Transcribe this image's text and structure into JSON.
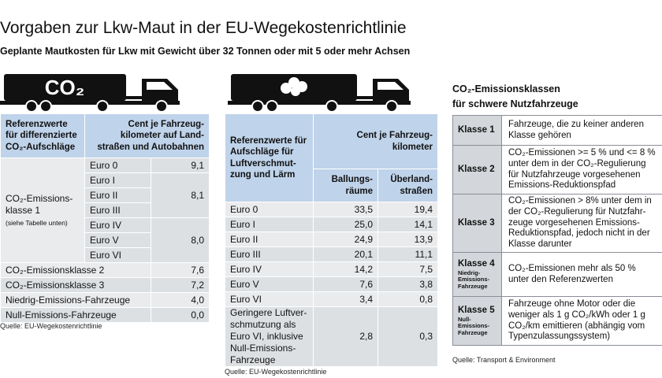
{
  "title": "Vorgaben zur Lkw-Maut in der EU-Wegekostenrichtlinie",
  "subtitle": "Geplante Mautkosten für Lkw mit Gewicht über 32 Tonnen oder mit 5 oder mehr Achsen",
  "truck_left_label": "CO₂",
  "table1": {
    "header_left": "Referenzwerte für differenzierte CO₂-Aufschläge",
    "header_right": "Cent je Fahrzeug-kilometer auf Land-straßen und Autobahnen",
    "group_label": "CO₂-Emissions-klasse 1",
    "group_note": "(siehe Tabelle unten)",
    "euro": [
      "Euro 0",
      "Euro I",
      "Euro II",
      "Euro III",
      "Euro IV",
      "Euro V",
      "Euro VI"
    ],
    "group_values": [
      "9,1",
      "8,1",
      "8,0"
    ],
    "rows": [
      {
        "label": "CO₂-Emissionsklasse 2",
        "value": "7,6"
      },
      {
        "label": "CO₂-Emissionsklasse 3",
        "value": "7,2"
      },
      {
        "label": "Niedrig-Emissions-Fahrzeuge",
        "value": "4,0"
      },
      {
        "label": "Null-Emissions-Fahrzeuge",
        "value": "0,0"
      }
    ],
    "source": "Quelle: EU-Wegekostenrichtlinie"
  },
  "table2": {
    "header_left": "Referenzwerte für Aufschläge für Luftverschmut-zung und Lärm",
    "header_right": "Cent je Fahrzeug-kilometer",
    "col1": "Ballungs-räume",
    "col2": "Überland-straßen",
    "rows": [
      {
        "label": "Euro 0",
        "a": "33,5",
        "b": "19,4"
      },
      {
        "label": "Euro I",
        "a": "25,0",
        "b": "14,1"
      },
      {
        "label": "Euro II",
        "a": "24,9",
        "b": "13,9"
      },
      {
        "label": "Euro III",
        "a": "20,1",
        "b": "11,1"
      },
      {
        "label": "Euro IV",
        "a": "14,2",
        "b": "7,5"
      },
      {
        "label": "Euro V",
        "a": "7,6",
        "b": "3,8"
      },
      {
        "label": "Euro VI",
        "a": "3,4",
        "b": "0,8"
      },
      {
        "label": "Geringere Luftver-schmutzung als Euro VI, inklusive Null-Emissions-Fahrzeuge",
        "a": "2,8",
        "b": "0,3"
      }
    ],
    "source": "Quelle: EU-Wegekostenrichtlinie"
  },
  "table3": {
    "title_line1": "CO₂-Emissionsklassen",
    "title_line2": "für schwere Nutzfahrzeuge",
    "rows": [
      {
        "klasse": "Klasse 1",
        "sub": "",
        "text": "Fahrzeuge, die zu keiner anderen Klasse gehören"
      },
      {
        "klasse": "Klasse 2",
        "sub": "",
        "text": "CO₂-Emissionen >= 5 % und <= 8 % unter dem in der CO₂-Regulierung für Nutzfahrzeuge vorgesehenen Emissions-Reduktionspfad"
      },
      {
        "klasse": "Klasse 3",
        "sub": "",
        "text": "CO₂-Emissionen > 8% unter dem in der CO₂-Regulierung für Nutzfahr-zeuge vorgesehenen Emissions-Reduktionspfad, jedoch nicht in der Klasse darunter"
      },
      {
        "klasse": "Klasse 4",
        "sub": "Niedrig-Emissions-Fahrzeuge",
        "text": "CO₂-Emissionen mehr als 50 % unter den Referenzwerten"
      },
      {
        "klasse": "Klasse 5",
        "sub": "Null-Emissions-Fahrzeuge",
        "text": "Fahrzeuge ohne Motor oder die weniger als 1 g CO₂/kWh oder 1 g CO₂/km emittieren (abhängig vom Typenzulassungssystem)"
      }
    ],
    "source": "Quelle: Transport & Environment"
  }
}
